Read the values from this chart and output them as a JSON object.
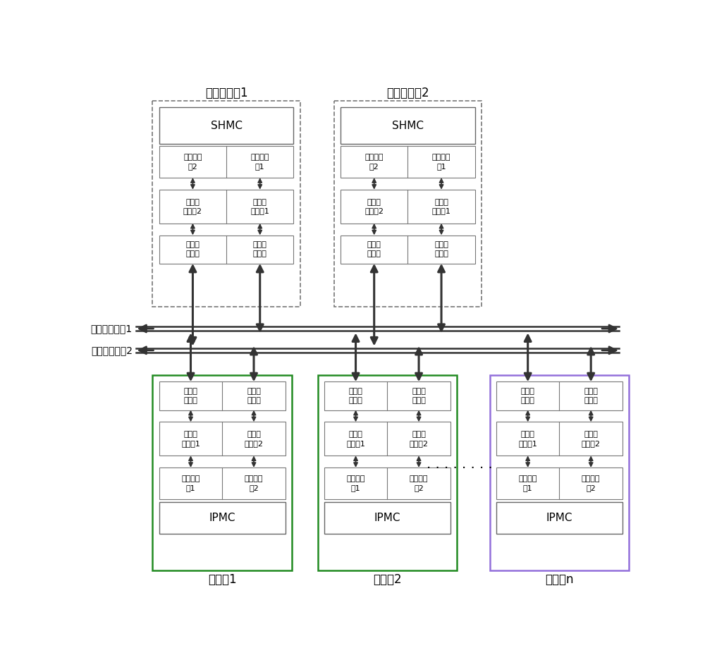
{
  "bg_color": "#ffffff",
  "line_color": "#333333",
  "bus1_label": "机电管理总线1",
  "bus2_label": "机电管理总线2",
  "shmc_label": "SHMC",
  "ipmc_label": "IPMC",
  "mgmt_board1_label": "机电管理盘1",
  "mgmt_board2_label": "机电管理盘2",
  "service_board1_label": "业务盘1",
  "service_board2_label": "业务盘2",
  "service_boardn_label": "业务盘n",
  "ctrl2_label": "总线控制\n器2",
  "ctrl1_label": "总线控制\n器1",
  "chip2_label": "总线接\n口芯片2",
  "chip1_label": "总线接\n口芯片1",
  "chip1b_label": "总线接\n口芯片1",
  "chip2b_label": "总线接\n口芯片2",
  "circuit_label": "总线接\n口电路",
  "dots_label": "· · · · · · · ·",
  "font_size_title": 12,
  "font_size_cell": 8,
  "font_size_bus": 10,
  "font_size_shmc": 11
}
